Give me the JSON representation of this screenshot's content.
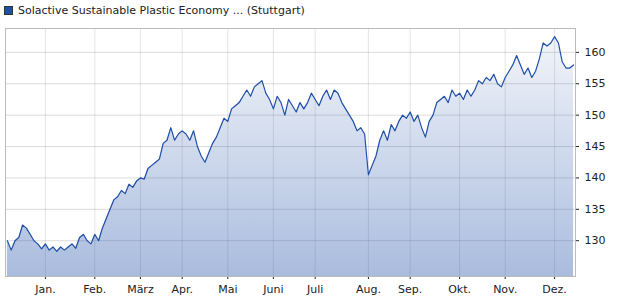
{
  "chart_data": {
    "type": "area",
    "series": [
      {
        "name": "Solactive Sustainable Plastic Economy ... (Stuttgart)",
        "color": "#1f4fa8",
        "values": [
          130,
          128.5,
          130,
          130.5,
          132.5,
          132,
          131,
          130,
          129.5,
          128.7,
          129.5,
          128.5,
          129,
          128.3,
          129,
          128.5,
          129,
          129.5,
          128.8,
          130.5,
          131,
          130,
          129.5,
          131,
          130,
          132,
          133.5,
          135,
          136.5,
          137,
          138,
          137.5,
          139,
          138.5,
          139.5,
          140,
          139.8,
          141.5,
          142,
          142.5,
          143,
          145.5,
          146,
          148,
          146,
          147,
          147.5,
          147,
          146,
          147.5,
          145,
          143.5,
          142.5,
          144,
          145.5,
          146.5,
          148,
          149.5,
          149,
          151,
          151.5,
          152,
          153,
          154,
          153,
          154.5,
          155,
          155.5,
          153.5,
          152.5,
          151,
          153,
          152,
          150,
          152.5,
          151.5,
          150.5,
          152,
          151,
          152,
          153.5,
          152.5,
          151.5,
          153,
          154,
          152.5,
          154,
          153.5,
          152,
          151,
          150,
          149,
          147.5,
          148,
          147,
          140.5,
          142,
          143.5,
          146,
          147.5,
          146,
          148.5,
          147.5,
          149,
          150,
          149.5,
          150.5,
          149,
          150,
          148,
          146.5,
          149,
          150,
          152,
          152.5,
          153,
          152,
          154,
          153,
          153.5,
          152.5,
          154,
          153,
          154,
          155.5,
          155,
          156,
          155.5,
          156.5,
          155,
          154.5,
          156,
          157,
          158,
          159.5,
          158,
          156.5,
          157.5,
          156,
          157,
          159,
          161.5,
          161,
          161.5,
          162.5,
          161.5,
          158.5,
          157.5,
          157.5,
          158
        ]
      }
    ],
    "categories": [
      null,
      null,
      null,
      null,
      null,
      null,
      null,
      null,
      null,
      null,
      "Jan.",
      null,
      null,
      null,
      null,
      null,
      null,
      null,
      null,
      null,
      null,
      null,
      null,
      "Feb.",
      null,
      null,
      null,
      null,
      null,
      null,
      null,
      null,
      null,
      null,
      null,
      "März",
      null,
      null,
      null,
      null,
      null,
      null,
      null,
      null,
      null,
      null,
      "Apr.",
      null,
      null,
      null,
      null,
      null,
      null,
      null,
      null,
      null,
      null,
      null,
      "Mai",
      null,
      null,
      null,
      null,
      null,
      null,
      null,
      null,
      null,
      null,
      null,
      "Juni",
      null,
      null,
      null,
      null,
      null,
      null,
      null,
      null,
      null,
      null,
      "Juli",
      null,
      null,
      null,
      null,
      null,
      null,
      null,
      null,
      null,
      null,
      null,
      null,
      null,
      "Aug.",
      null,
      null,
      null,
      null,
      null,
      null,
      null,
      null,
      null,
      null,
      "Sep.",
      null,
      null,
      null,
      null,
      null,
      null,
      null,
      null,
      null,
      null,
      null,
      null,
      "Okt.",
      null,
      null,
      null,
      null,
      null,
      null,
      null,
      null,
      null,
      null,
      null,
      "Nov.",
      null,
      null,
      null,
      null,
      null,
      null,
      null,
      null,
      null,
      null,
      null,
      null,
      "Dez.",
      null,
      null,
      null,
      null,
      null
    ],
    "ylim": [
      124.3,
      163.8
    ],
    "yticks": [
      130,
      135,
      140,
      145,
      150,
      155,
      160
    ],
    "grid": true,
    "legend": "top-left"
  }
}
